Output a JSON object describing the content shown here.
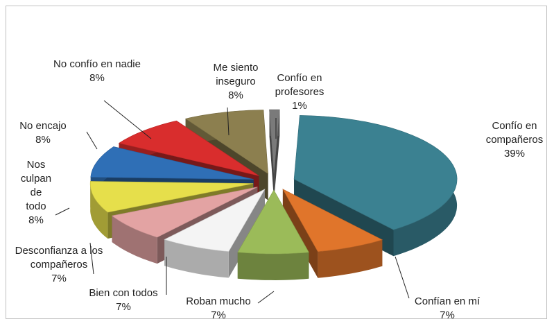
{
  "chart_data": {
    "type": "pie3d",
    "categories": [
      "Confío en compañeros",
      "Confían en mí",
      "Roban mucho",
      "Bien con todos",
      "Desconfianza a los compañeros",
      "Nos culpan de todo",
      "No encajo",
      "No confío en nadie",
      "Me siento inseguro",
      "Confío en profesores"
    ],
    "values": [
      39,
      7,
      7,
      7,
      7,
      8,
      8,
      8,
      8,
      1
    ],
    "value_labels": [
      "39%",
      "7%",
      "7%",
      "7%",
      "7%",
      "8%",
      "8%",
      "8%",
      "8%",
      "1%"
    ],
    "colors": [
      "#3b8191",
      "#e0752b",
      "#9bbb59",
      "#f4f4f4",
      "#e3a3a3",
      "#e6df4b",
      "#2f6fb6",
      "#d92d2d",
      "#8c7f4f",
      "#7a7a7a"
    ]
  }
}
